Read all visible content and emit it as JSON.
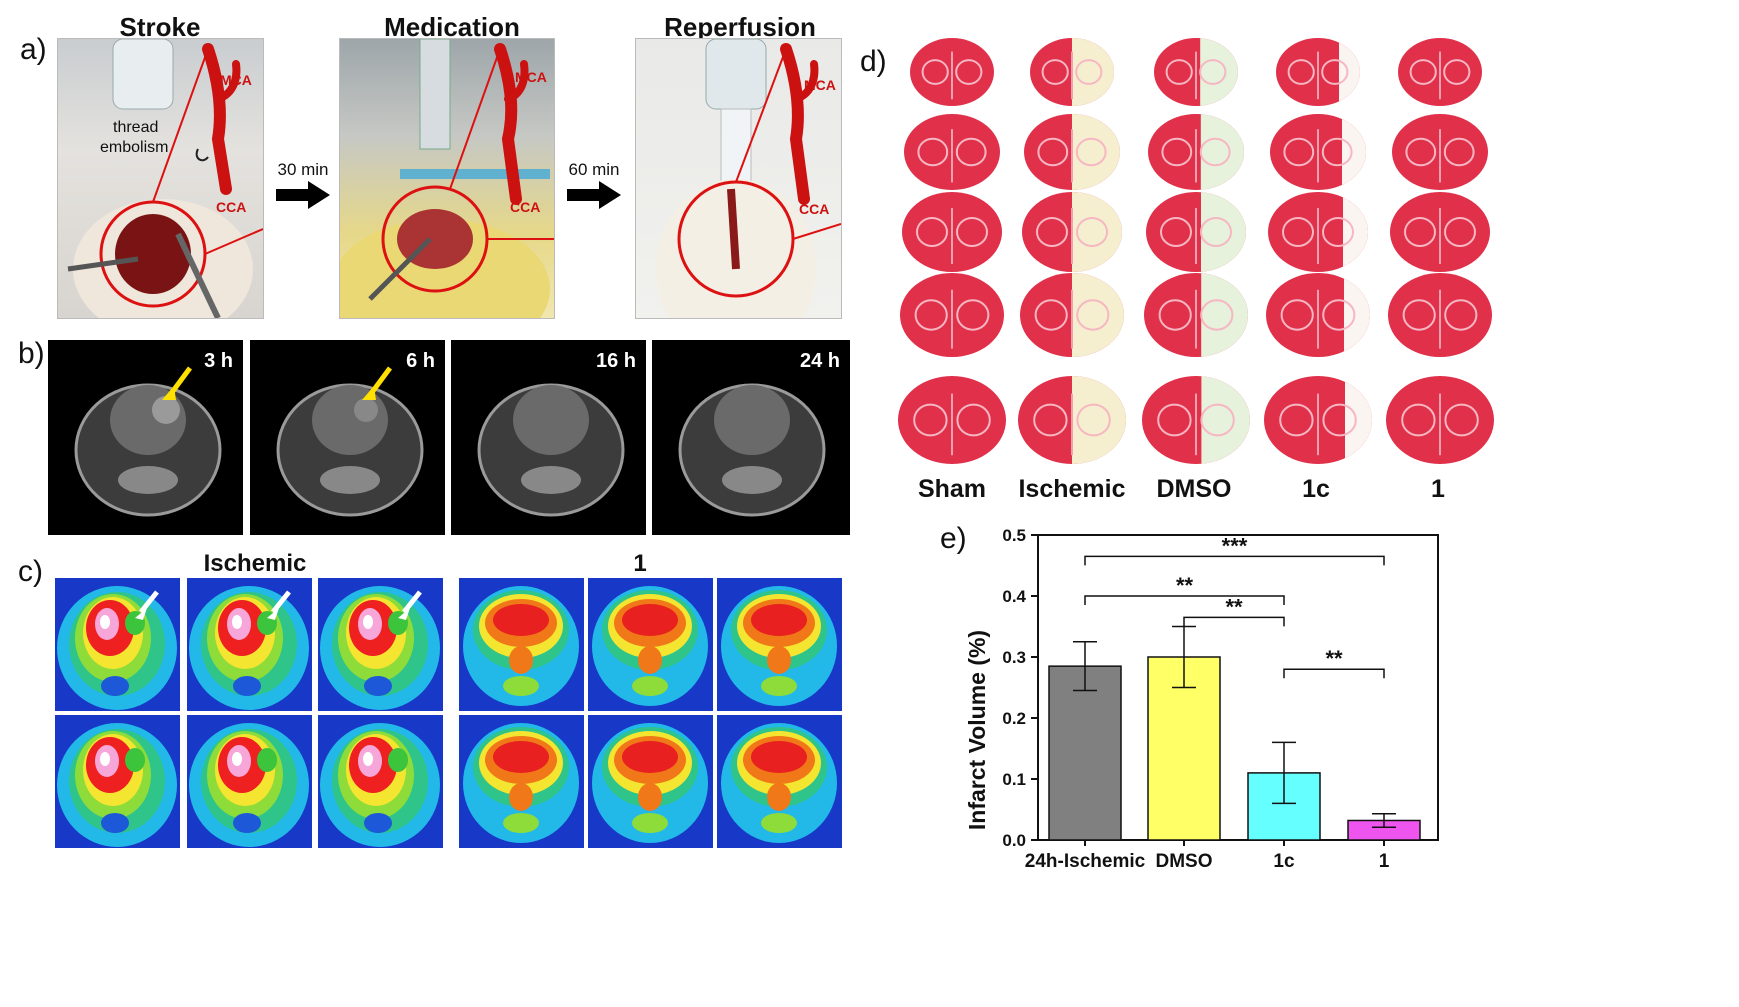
{
  "panel_labels": {
    "a": "a)",
    "b": "b)",
    "c": "c)",
    "d": "d)",
    "e": "e)"
  },
  "panel_a": {
    "titles": [
      "Stroke",
      "Medication",
      "Reperfusion"
    ],
    "steps": [
      "30 min",
      "60 min"
    ],
    "labels": {
      "mca": "MCA",
      "cca": "CCA",
      "thread": "thread",
      "embolism": "embolism"
    }
  },
  "panel_b": {
    "times": [
      "3 h",
      "6 h",
      "16 h",
      "24 h"
    ]
  },
  "panel_c": {
    "groups": [
      "Ischemic",
      "1"
    ]
  },
  "panel_d": {
    "groups": [
      "Sham",
      "Ischemic",
      "DMSO",
      "1c",
      "1"
    ]
  },
  "colors": {
    "gray_bar": "#808080",
    "yellow_bar": "#ffff66",
    "cyan_bar": "#66ffff",
    "magenta_bar": "#ee55ee",
    "vessel_red": "#cc1111",
    "circle_red": "#dd1111",
    "arrow_yellow": "#ffe000",
    "tissue_red": "#e0304a"
  },
  "chart_data": {
    "type": "bar",
    "categories": [
      "24h-Ischemic",
      "DMSO",
      "1c",
      "1"
    ],
    "values": [
      0.285,
      0.3,
      0.11,
      0.032
    ],
    "errors": [
      0.04,
      0.05,
      0.05,
      0.011
    ],
    "xlabel": "",
    "ylabel": "Infarct Volume (%)",
    "ylim": [
      0,
      0.5
    ],
    "yticks": [
      "0.0",
      "0.1",
      "0.2",
      "0.3",
      "0.4",
      "0.5"
    ],
    "significance": [
      {
        "from": "24h-Ischemic",
        "to": "1",
        "label": "***"
      },
      {
        "from": "24h-Ischemic",
        "to": "1c",
        "label": "**"
      },
      {
        "from": "DMSO",
        "to": "1c",
        "label": "**"
      },
      {
        "from": "1c",
        "to": "1",
        "label": "**"
      }
    ],
    "grid": false
  }
}
